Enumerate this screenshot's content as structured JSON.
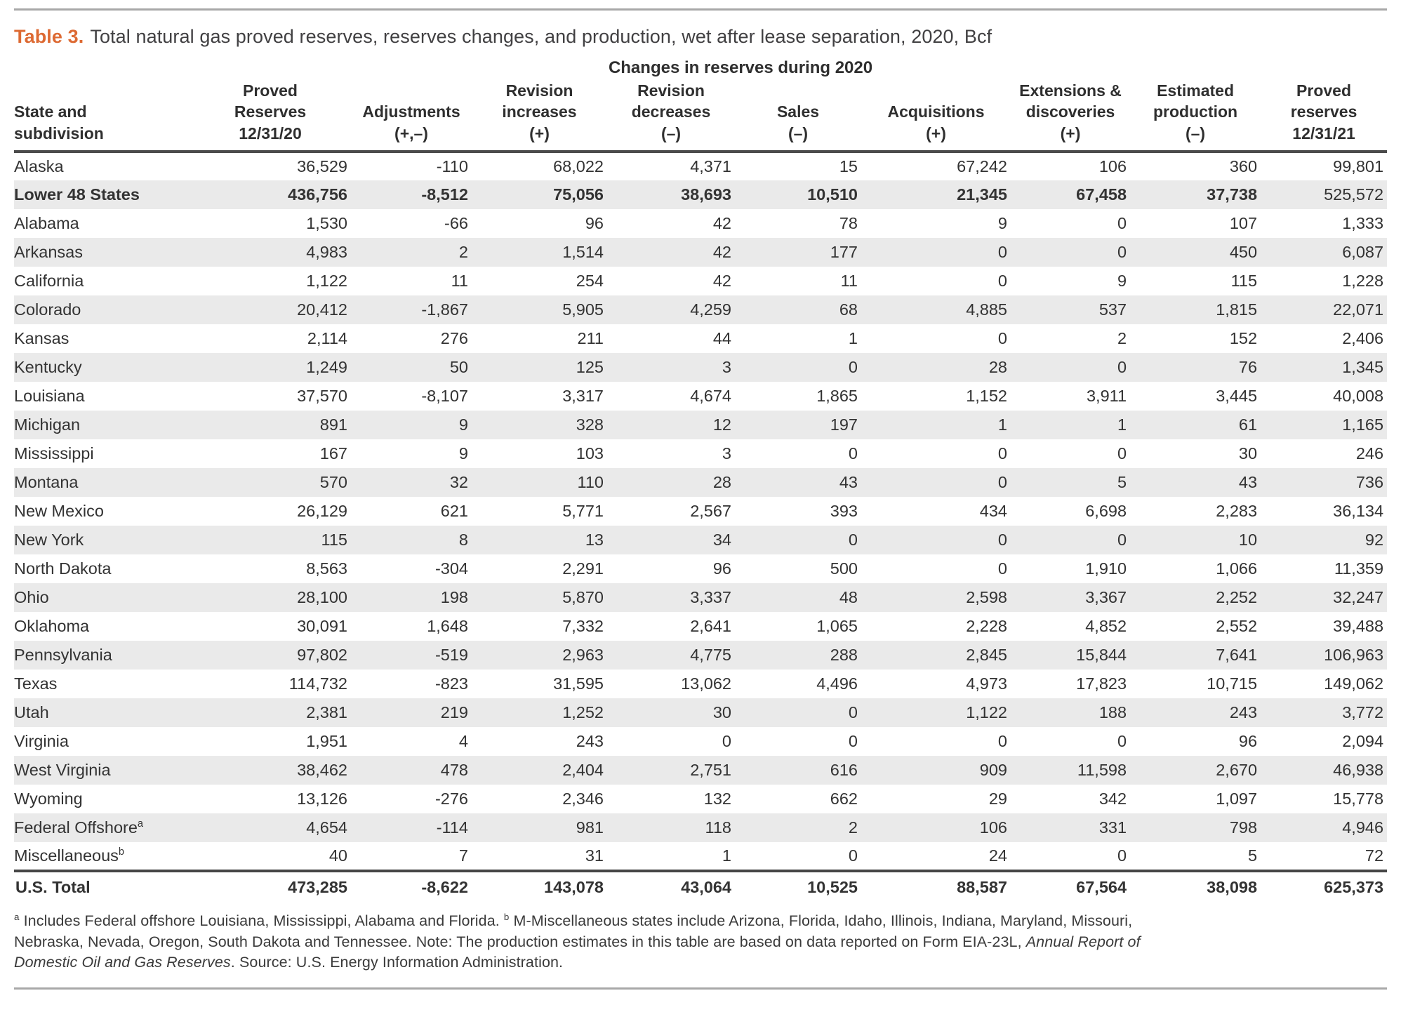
{
  "title": {
    "prefix": "Table 3.",
    "caption": "Total natural gas proved reserves, reserves changes, and production, wet after lease separation, 2020, Bcf"
  },
  "table": {
    "group_header": "Changes in reserves during 2020",
    "columns": [
      "State and\nsubdivision",
      "Proved\nReserves\n12/31/20",
      "Adjustments\n(+,–)",
      "Revision\nincreases\n(+)",
      "Revision\ndecreases\n(–)",
      "Sales\n(–)",
      "Acquisitions\n(+)",
      "Extensions &\ndiscoveries\n(+)",
      "Estimated\nproduction\n(–)",
      "Proved\nreserves\n12/31/21"
    ],
    "rows": [
      {
        "name": "Alaska",
        "values": [
          "36,529",
          "-110",
          "68,022",
          "4,371",
          "15",
          "67,242",
          "106",
          "360",
          "99,801"
        ]
      },
      {
        "name": "Lower 48 States",
        "bold": true,
        "last_regular": true,
        "values": [
          "436,756",
          "-8,512",
          "75,056",
          "38,693",
          "10,510",
          "21,345",
          "67,458",
          "37,738",
          "525,572"
        ]
      },
      {
        "name": "Alabama",
        "values": [
          "1,530",
          "-66",
          "96",
          "42",
          "78",
          "9",
          "0",
          "107",
          "1,333"
        ]
      },
      {
        "name": "Arkansas",
        "values": [
          "4,983",
          "2",
          "1,514",
          "42",
          "177",
          "0",
          "0",
          "450",
          "6,087"
        ]
      },
      {
        "name": "California",
        "values": [
          "1,122",
          "11",
          "254",
          "42",
          "11",
          "0",
          "9",
          "115",
          "1,228"
        ]
      },
      {
        "name": "Colorado",
        "values": [
          "20,412",
          "-1,867",
          "5,905",
          "4,259",
          "68",
          "4,885",
          "537",
          "1,815",
          "22,071"
        ]
      },
      {
        "name": "Kansas",
        "values": [
          "2,114",
          "276",
          "211",
          "44",
          "1",
          "0",
          "2",
          "152",
          "2,406"
        ]
      },
      {
        "name": "Kentucky",
        "values": [
          "1,249",
          "50",
          "125",
          "3",
          "0",
          "28",
          "0",
          "76",
          "1,345"
        ]
      },
      {
        "name": "Louisiana",
        "values": [
          "37,570",
          "-8,107",
          "3,317",
          "4,674",
          "1,865",
          "1,152",
          "3,911",
          "3,445",
          "40,008"
        ]
      },
      {
        "name": "Michigan",
        "values": [
          "891",
          "9",
          "328",
          "12",
          "197",
          "1",
          "1",
          "61",
          "1,165"
        ]
      },
      {
        "name": "Mississippi",
        "values": [
          "167",
          "9",
          "103",
          "3",
          "0",
          "0",
          "0",
          "30",
          "246"
        ]
      },
      {
        "name": "Montana",
        "values": [
          "570",
          "32",
          "110",
          "28",
          "43",
          "0",
          "5",
          "43",
          "736"
        ]
      },
      {
        "name": "New Mexico",
        "values": [
          "26,129",
          "621",
          "5,771",
          "2,567",
          "393",
          "434",
          "6,698",
          "2,283",
          "36,134"
        ]
      },
      {
        "name": "New York",
        "values": [
          "115",
          "8",
          "13",
          "34",
          "0",
          "0",
          "0",
          "10",
          "92"
        ]
      },
      {
        "name": "North Dakota",
        "values": [
          "8,563",
          "-304",
          "2,291",
          "96",
          "500",
          "0",
          "1,910",
          "1,066",
          "11,359"
        ]
      },
      {
        "name": "Ohio",
        "values": [
          "28,100",
          "198",
          "5,870",
          "3,337",
          "48",
          "2,598",
          "3,367",
          "2,252",
          "32,247"
        ]
      },
      {
        "name": "Oklahoma",
        "values": [
          "30,091",
          "1,648",
          "7,332",
          "2,641",
          "1,065",
          "2,228",
          "4,852",
          "2,552",
          "39,488"
        ]
      },
      {
        "name": "Pennsylvania",
        "values": [
          "97,802",
          "-519",
          "2,963",
          "4,775",
          "288",
          "2,845",
          "15,844",
          "7,641",
          "106,963"
        ]
      },
      {
        "name": "Texas",
        "values": [
          "114,732",
          "-823",
          "31,595",
          "13,062",
          "4,496",
          "4,973",
          "17,823",
          "10,715",
          "149,062"
        ]
      },
      {
        "name": "Utah",
        "values": [
          "2,381",
          "219",
          "1,252",
          "30",
          "0",
          "1,122",
          "188",
          "243",
          "3,772"
        ]
      },
      {
        "name": "Virginia",
        "values": [
          "1,951",
          "4",
          "243",
          "0",
          "0",
          "0",
          "0",
          "96",
          "2,094"
        ]
      },
      {
        "name": "West Virginia",
        "values": [
          "38,462",
          "478",
          "2,404",
          "2,751",
          "616",
          "909",
          "11,598",
          "2,670",
          "46,938"
        ]
      },
      {
        "name": "Wyoming",
        "values": [
          "13,126",
          "-276",
          "2,346",
          "132",
          "662",
          "29",
          "342",
          "1,097",
          "15,778"
        ]
      },
      {
        "name": "Federal Offshore",
        "sup": "a",
        "values": [
          "4,654",
          "-114",
          "981",
          "118",
          "2",
          "106",
          "331",
          "798",
          "4,946"
        ]
      },
      {
        "name": "Miscellaneous",
        "sup": "b",
        "values": [
          "40",
          "7",
          "31",
          "1",
          "0",
          "24",
          "0",
          "5",
          "72"
        ]
      },
      {
        "name": "U.S. Total",
        "total": true,
        "bold": true,
        "values": [
          "473,285",
          "-8,622",
          "143,078",
          "43,064",
          "10,525",
          "88,587",
          "67,564",
          "38,098",
          "625,373"
        ]
      }
    ]
  },
  "footnote": {
    "segments": [
      {
        "type": "sup",
        "text": "a"
      },
      {
        "type": "text",
        "text": " Includes Federal offshore Louisiana, Mississippi, Alabama and Florida. "
      },
      {
        "type": "sup",
        "text": "b"
      },
      {
        "type": "text",
        "text": " M-Miscellaneous states include Arizona, Florida, Idaho, Illinois, Indiana, Maryland, Missouri,\nNebraska, Nevada, Oregon, South Dakota and Tennessee. Note: The production estimates in this table are based on data reported on Form EIA-23L, "
      },
      {
        "type": "italic",
        "text": "Annual Report of\nDomestic Oil and Gas Reserves"
      },
      {
        "type": "text",
        "text": ". Source: U.S. Energy Information Administration."
      }
    ]
  },
  "colors": {
    "accent_orange": "#dd6a33",
    "shaded_row": "#eaeaea",
    "rule_gray": "#a8a8a8",
    "rule_dark": "#4b4b4b",
    "text": "#333333"
  }
}
